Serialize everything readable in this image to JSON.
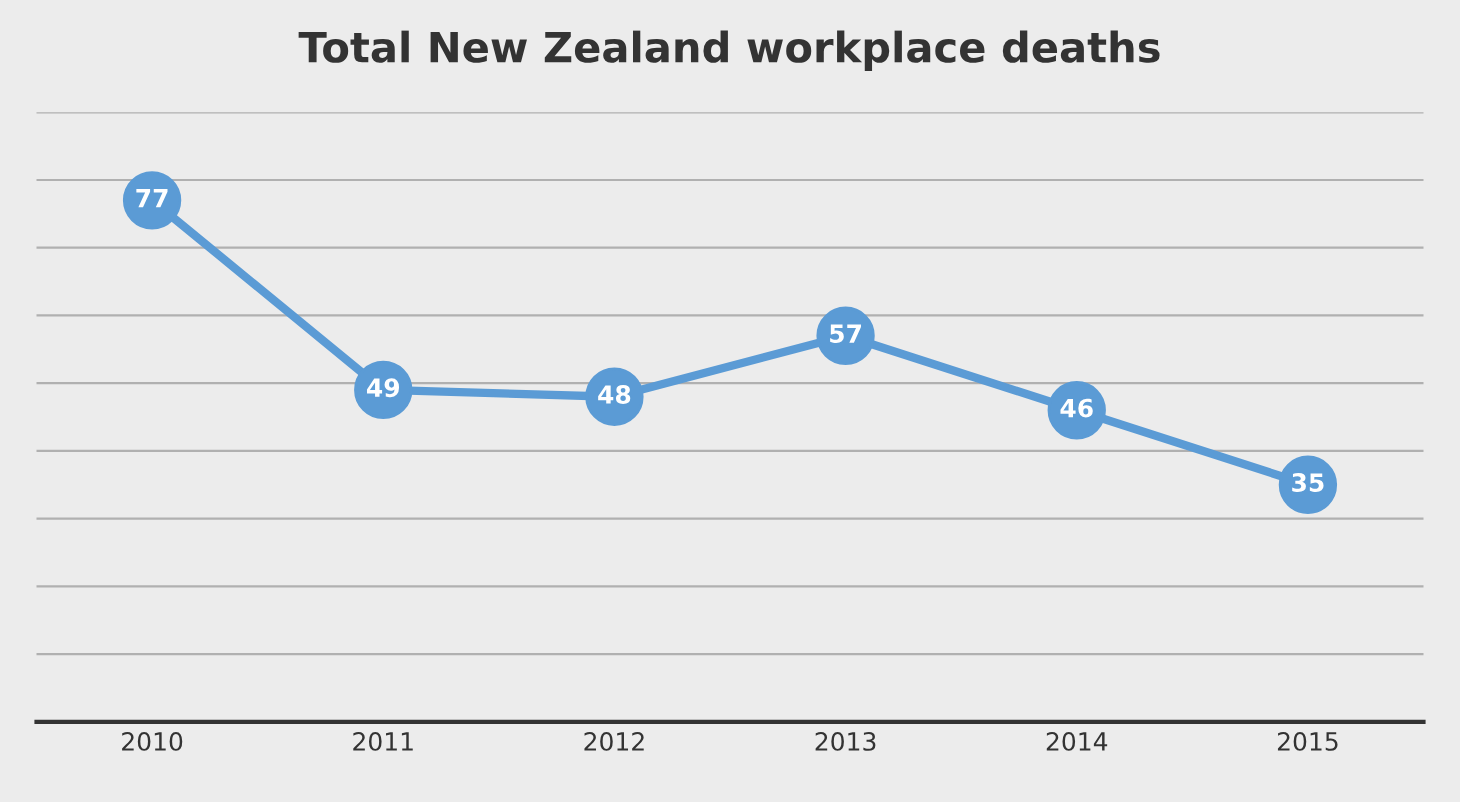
{
  "chart_data": {
    "type": "line",
    "title": "Total New Zealand workplace deaths",
    "categories": [
      "2010",
      "2011",
      "2012",
      "2013",
      "2014",
      "2015"
    ],
    "series": [
      {
        "color": "#5b9bd5",
        "values": [
          77,
          49,
          48,
          57,
          46,
          35
        ]
      }
    ],
    "ylim": [
      0,
      90
    ],
    "yticks": [
      {
        "value": 0,
        "label": null
      },
      {
        "value": 10,
        "label": null
      },
      {
        "value": 20,
        "label": null
      },
      {
        "value": 30,
        "label": null
      },
      {
        "value": 40,
        "label": null
      },
      {
        "value": 50,
        "label": null
      },
      {
        "value": 60,
        "label": null
      },
      {
        "value": 70,
        "label": null
      },
      {
        "value": 80,
        "label": null
      },
      {
        "value": 90,
        "label": null
      }
    ],
    "grid": "y",
    "tick_labels": "x",
    "marker": "circle",
    "line_style": "solid",
    "data_labels": true
  }
}
